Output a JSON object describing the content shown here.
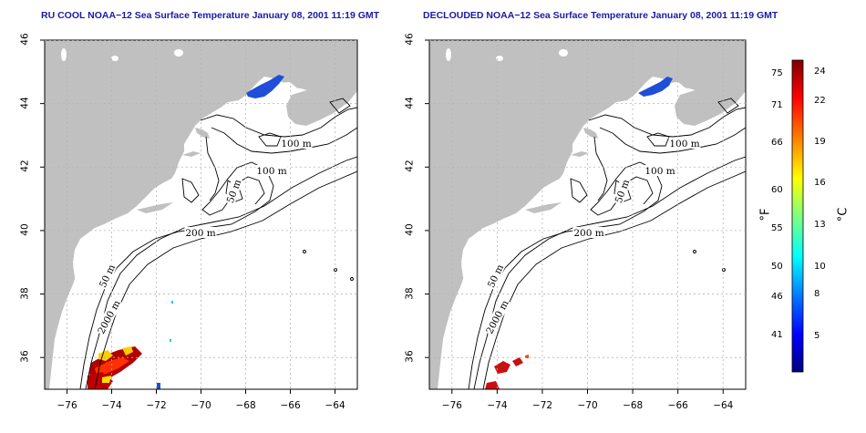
{
  "left_map": {
    "title": "RU COOL NOAA−12 Sea Surface Temperature January 08, 2001 11:19 GMT",
    "contour_labels": [
      "100 m",
      "100 m",
      "50 m",
      "200 m",
      "50 m",
      "2000 m"
    ]
  },
  "right_map": {
    "title": "DECLOUDED NOAA−12 Sea Surface Temperature January 08, 2001 11:19 GMT",
    "contour_labels": [
      "100 m",
      "100 m",
      "50 m",
      "200 m",
      "50 m",
      "2000 m"
    ]
  },
  "axes": {
    "x_ticks": [
      "−76",
      "−74",
      "−72",
      "−70",
      "−68",
      "−66",
      "−64"
    ],
    "y_ticks": [
      "46",
      "44",
      "42",
      "40",
      "38",
      "36"
    ]
  },
  "colorbar": {
    "fahrenheit_label": "°F",
    "celsius_label": "°C",
    "fahrenheit_ticks": [
      "75",
      "71",
      "66",
      "60",
      "55",
      "50",
      "46",
      "41"
    ],
    "celsius_ticks": [
      "24",
      "22",
      "19",
      "16",
      "13",
      "10",
      "8",
      "5"
    ],
    "colors": [
      "#00007f",
      "#0000ff",
      "#007fff",
      "#00ffff",
      "#7fff7f",
      "#ffff00",
      "#ff7f00",
      "#ff0000",
      "#7f0000"
    ]
  },
  "style": {
    "land_color": "#c0c0c0",
    "title_color": "#1a1aa6",
    "grid_color": "#b4b4b4"
  }
}
